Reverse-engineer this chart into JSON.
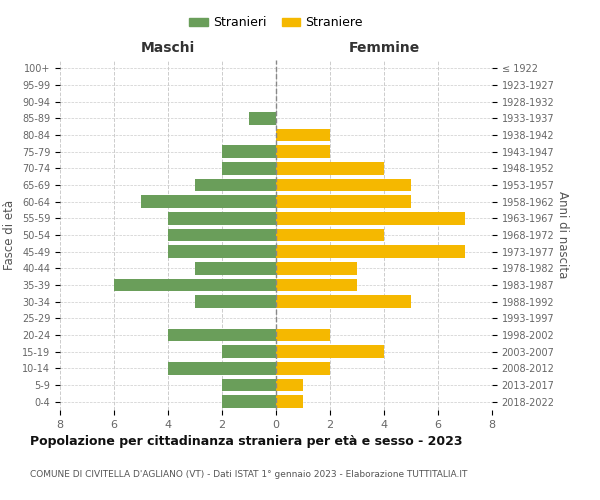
{
  "age_groups": [
    "0-4",
    "5-9",
    "10-14",
    "15-19",
    "20-24",
    "25-29",
    "30-34",
    "35-39",
    "40-44",
    "45-49",
    "50-54",
    "55-59",
    "60-64",
    "65-69",
    "70-74",
    "75-79",
    "80-84",
    "85-89",
    "90-94",
    "95-99",
    "100+"
  ],
  "birth_years": [
    "2018-2022",
    "2013-2017",
    "2008-2012",
    "2003-2007",
    "1998-2002",
    "1993-1997",
    "1988-1992",
    "1983-1987",
    "1978-1982",
    "1973-1977",
    "1968-1972",
    "1963-1967",
    "1958-1962",
    "1953-1957",
    "1948-1952",
    "1943-1947",
    "1938-1942",
    "1933-1937",
    "1928-1932",
    "1923-1927",
    "≤ 1922"
  ],
  "maschi": [
    2,
    2,
    4,
    2,
    4,
    0,
    3,
    6,
    3,
    4,
    4,
    4,
    5,
    3,
    2,
    2,
    0,
    1,
    0,
    0,
    0
  ],
  "femmine": [
    1,
    1,
    2,
    4,
    2,
    0,
    5,
    3,
    3,
    7,
    4,
    7,
    5,
    5,
    4,
    2,
    2,
    0,
    0,
    0,
    0
  ],
  "male_color": "#6a9e5a",
  "female_color": "#f5b800",
  "background_color": "#ffffff",
  "grid_color": "#cccccc",
  "title": "Popolazione per cittadinanza straniera per età e sesso - 2023",
  "subtitle": "COMUNE DI CIVITELLA D'AGLIANO (VT) - Dati ISTAT 1° gennaio 2023 - Elaborazione TUTTITALIA.IT",
  "ylabel_left": "Fasce di età",
  "ylabel_right": "Anni di nascita",
  "xlabel_left": "Maschi",
  "xlabel_top_right": "Femmine",
  "legend_stranieri": "Stranieri",
  "legend_straniere": "Straniere",
  "xlim": 8,
  "bar_height": 0.75
}
